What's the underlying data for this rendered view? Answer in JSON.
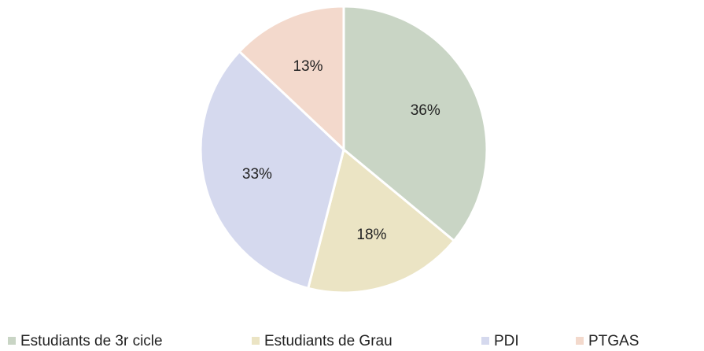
{
  "chart_data": {
    "type": "pie",
    "categories": [
      "Estudiants de 3r cicle",
      "Estudiants de Grau",
      "PDI",
      "PTGAS"
    ],
    "values": [
      36,
      18,
      33,
      13
    ],
    "value_labels": [
      "36%",
      "18%",
      "33%",
      "13%"
    ],
    "colors": [
      "#c9d5c5",
      "#ebe4c4",
      "#d5d9ee",
      "#f3d9cc"
    ],
    "legend": "bottom"
  }
}
